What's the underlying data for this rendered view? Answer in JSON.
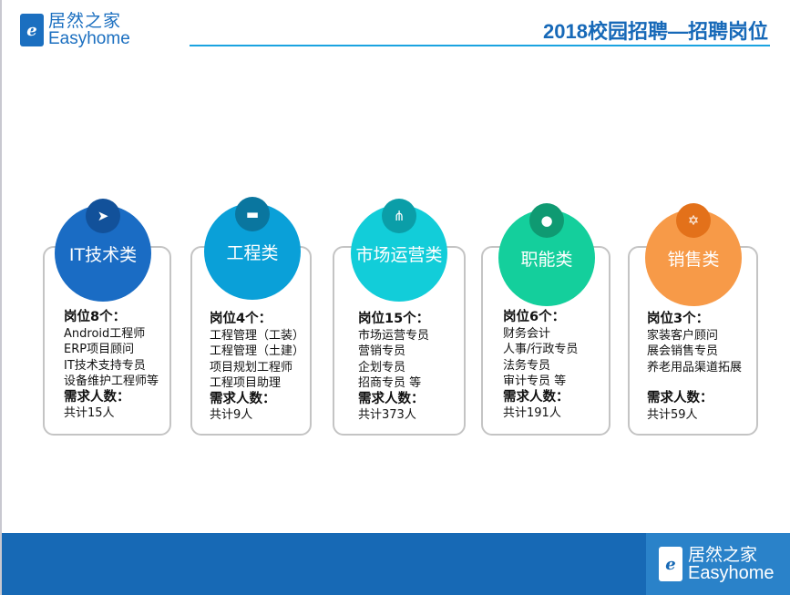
{
  "header": {
    "logo_cn": "居然之家",
    "logo_en": "Easyhome",
    "logo_mark": "e",
    "title": "2018校园招聘—招聘岗位"
  },
  "cards": [
    {
      "name": "IT技术类",
      "icon": "paper-plane-icon",
      "color": "#1a6cc4",
      "icon_color": "#12519a",
      "positions": "岗位8个：",
      "items": [
        "Android工程师",
        "ERP项目顾问",
        "IT技术支持专员",
        "设备维护工程师等"
      ],
      "demand_label": "需求人数：",
      "demand": "共计15人"
    },
    {
      "name": "工程类",
      "icon": "folder-icon",
      "color": "#0aa0d8",
      "icon_color": "#0a769f",
      "positions": "岗位4个：",
      "items": [
        "工程管理（工装）",
        "工程管理（土建）",
        "项目规划工程师",
        "工程项目助理"
      ],
      "demand_label": "需求人数：",
      "demand": "共计9人"
    },
    {
      "name": "市场运营类",
      "icon": "network-icon",
      "color": "#12cdd9",
      "icon_color": "#0b9ea8",
      "positions": "岗位15个：",
      "items": [
        "市场运营专员",
        "营销专员",
        "企划专员",
        "招商专员 等"
      ],
      "demand_label": "需求人数：",
      "demand": "共计373人"
    },
    {
      "name": "职能类",
      "icon": "user-icon",
      "color": "#14cf9c",
      "icon_color": "#0f9a72",
      "positions": "岗位6个：",
      "items": [
        "财务会计",
        "人事/行政专员",
        "法务专员",
        "审计专员 等"
      ],
      "demand_label": "需求人数：",
      "demand": "共计191人"
    },
    {
      "name": "销售类",
      "icon": "star-icon",
      "color": "#f79a48",
      "icon_color": "#e3711a",
      "positions": "岗位3个：",
      "items": [
        "家装客户顾问",
        "展会销售专员",
        "养老用品渠道拓展"
      ],
      "demand_label": "需求人数：",
      "demand": "共计59人"
    }
  ],
  "footer": {
    "logo_cn": "居然之家",
    "logo_en": "Easyhome",
    "logo_mark": "e"
  }
}
